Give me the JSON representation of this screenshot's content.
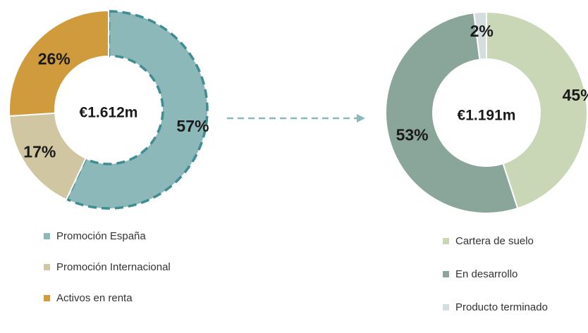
{
  "chart_data": [
    {
      "type": "pie",
      "center_label": "€1.612m",
      "categories": [
        "Promoción España",
        "Promoción Internacional",
        "Activos en renta"
      ],
      "values": [
        57,
        17,
        26
      ],
      "value_labels": [
        "57%",
        "17%",
        "26%"
      ],
      "colors": [
        "#8db8b9",
        "#d1c6a2",
        "#cf9b3d"
      ],
      "highlight_outline_color": "#3f8d91",
      "highlighted_category": "Promoción España",
      "legend": {
        "position": "bottom-left"
      }
    },
    {
      "type": "pie",
      "center_label": "€1.191m",
      "categories": [
        "Cartera de suelo",
        "En desarrollo",
        "Producto terminado"
      ],
      "values": [
        45,
        53,
        2
      ],
      "value_labels": [
        "45%",
        "53%",
        "2%"
      ],
      "colors": [
        "#c9d7b6",
        "#8aa59a",
        "#d4dede"
      ],
      "legend": {
        "position": "bottom-right"
      }
    }
  ],
  "connector": {
    "style": "dashed-arrow",
    "color": "#8db8b9"
  }
}
